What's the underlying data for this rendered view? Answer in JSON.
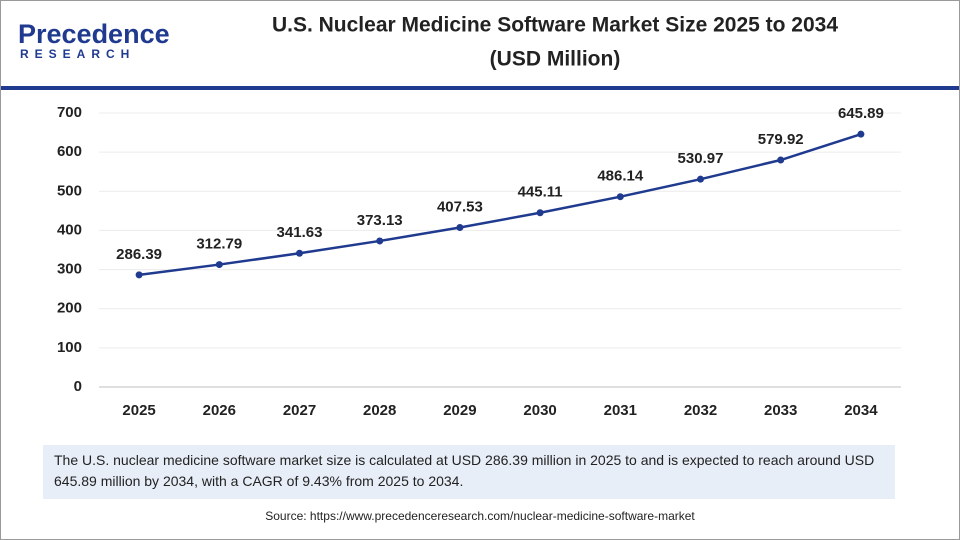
{
  "logo": {
    "name": "Precedence",
    "tagline": "RESEARCH"
  },
  "chart_data": {
    "type": "line",
    "title": "U.S. Nuclear Medicine Software Market Size 2025 to 2034",
    "subtitle": "(USD Million)",
    "categories": [
      "2025",
      "2026",
      "2027",
      "2028",
      "2029",
      "2030",
      "2031",
      "2032",
      "2033",
      "2034"
    ],
    "values": [
      286.39,
      312.79,
      341.63,
      373.13,
      407.53,
      445.11,
      486.14,
      530.97,
      579.92,
      645.89
    ],
    "color": "#1f3a8f",
    "ylim": [
      0,
      700
    ],
    "yticks": [
      0,
      100,
      200,
      300,
      400,
      500,
      600,
      700
    ],
    "grid": true
  },
  "description": "The U.S. nuclear medicine software market size is calculated at USD 286.39 million in 2025 to and is expected to reach around USD 645.89 million by 2034, with a CAGR of 9.43% from 2025 to 2034.",
  "source": "Source: https://www.precedenceresearch.com/nuclear-medicine-software-market"
}
